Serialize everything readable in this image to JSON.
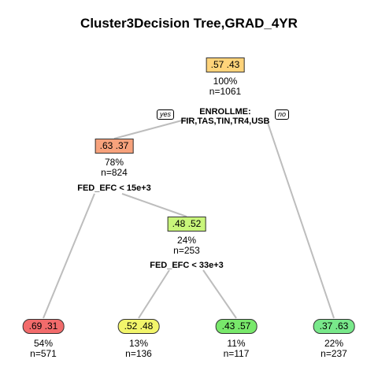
{
  "title": "Cluster3Decision Tree,GRAD_4YR",
  "labels": {
    "yes": "yes",
    "no": "no"
  },
  "colors": {
    "edge": "#bdbdbd",
    "root": "#ffd37a",
    "n2": "#f7a27c",
    "n5": "#c8f57a",
    "leaf_a": "#f26b6b",
    "leaf_b": "#f2f56b",
    "leaf_c": "#78e86b",
    "leaf_d": "#78e88a"
  },
  "nodes": {
    "root": {
      "probs": ".57  .43",
      "pct": "100%",
      "n": "n=1061",
      "split_line1": "ENROLLME:",
      "split_line2": "FIR,TAS,TIN,TR4,USB"
    },
    "n2": {
      "probs": ".63  .37",
      "pct": "78%",
      "n": "n=824",
      "split": "FED_EFC < 15e+3"
    },
    "n5": {
      "probs": ".48  .52",
      "pct": "24%",
      "n": "n=253",
      "split": "FED_EFC < 33e+3"
    }
  },
  "leaves": [
    {
      "probs": ".69  .31",
      "pct": "54%",
      "n": "n=571"
    },
    {
      "probs": ".52  .48",
      "pct": "13%",
      "n": "n=136"
    },
    {
      "probs": ".43  .57",
      "pct": "11%",
      "n": "n=117"
    },
    {
      "probs": ".37  .63",
      "pct": "22%",
      "n": "n=237"
    }
  ]
}
